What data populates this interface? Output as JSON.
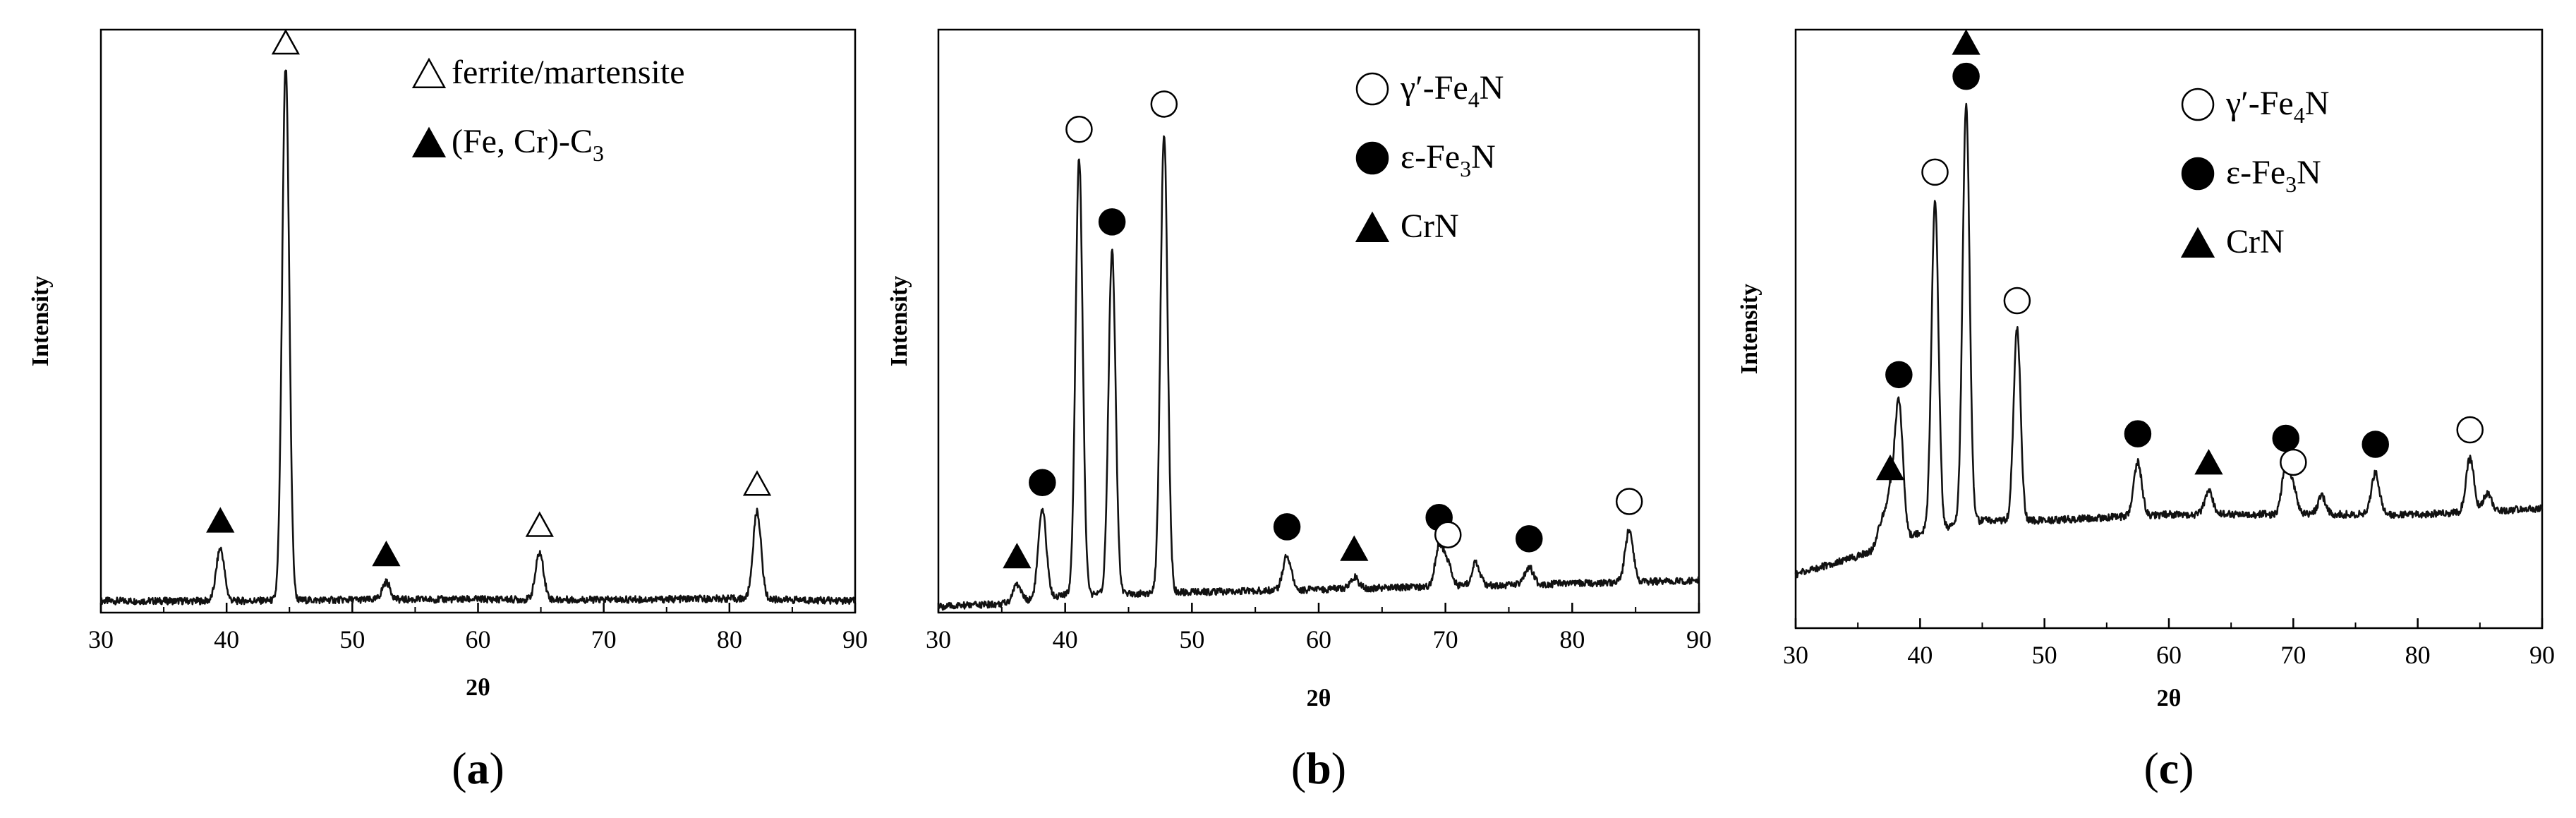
{
  "figure": {
    "markers": {
      "open-triangle": "open-triangle-icon",
      "filled-triangle": "filled-triangle-icon",
      "open-circle": "open-circle-icon",
      "filled-circle": "filled-circle-icon"
    }
  },
  "chart_data": [
    {
      "type": "line",
      "panel_label": {
        "open": "(",
        "letter": "a",
        "close": ")"
      },
      "xlabel": "2θ",
      "ylabel": "Intensity",
      "xlim": [
        30,
        90
      ],
      "x_ticks": [
        30,
        40,
        50,
        60,
        70,
        80,
        90
      ],
      "y_ticks": [],
      "grid": false,
      "legend_position": "top-right",
      "legend": [
        {
          "marker": "open-triangle",
          "label": "ferrite/martensite",
          "sub": "",
          "tail": ""
        },
        {
          "marker": "filled-triangle",
          "label": "(Fe, Cr)-C",
          "sub": "3",
          "tail": ""
        }
      ],
      "baseline": [
        [
          30,
          0.02
        ],
        [
          40,
          0.02
        ],
        [
          50,
          0.022
        ],
        [
          60,
          0.023
        ],
        [
          70,
          0.022
        ],
        [
          80,
          0.024
        ],
        [
          90,
          0.02
        ]
      ],
      "peaks": [
        {
          "x": 39.5,
          "height": 0.09,
          "marker": "filled-triangle"
        },
        {
          "x": 44.7,
          "height": 0.92,
          "marker": "open-triangle"
        },
        {
          "x": 52.7,
          "height": 0.03,
          "marker": "filled-triangle"
        },
        {
          "x": 64.9,
          "height": 0.08,
          "marker": "open-triangle"
        },
        {
          "x": 82.2,
          "height": 0.15,
          "marker": "open-triangle"
        }
      ]
    },
    {
      "type": "line",
      "panel_label": {
        "open": "(",
        "letter": "b",
        "close": ")"
      },
      "xlabel": "2θ",
      "ylabel": "Intensity",
      "xlim": [
        30,
        90
      ],
      "x_ticks": [
        30,
        40,
        50,
        60,
        70,
        80,
        90
      ],
      "y_ticks": [],
      "grid": false,
      "legend_position": "top-right",
      "legend": [
        {
          "marker": "open-circle",
          "label": "γ′-Fe",
          "sub": "4",
          "tail": "N"
        },
        {
          "marker": "filled-circle",
          "label": "ε-Fe",
          "sub": "3",
          "tail": "N"
        },
        {
          "marker": "filled-triangle",
          "label": "CrN",
          "sub": "",
          "tail": ""
        }
      ],
      "baseline": [
        [
          30,
          0.01
        ],
        [
          35,
          0.015
        ],
        [
          40,
          0.03
        ],
        [
          50,
          0.035
        ],
        [
          60,
          0.04
        ],
        [
          70,
          0.045
        ],
        [
          80,
          0.05
        ],
        [
          90,
          0.055
        ]
      ],
      "peaks": [
        {
          "x": 36.2,
          "height": 0.03,
          "marker": "filled-triangle"
        },
        {
          "x": 38.2,
          "height": 0.15,
          "marker": "filled-circle"
        },
        {
          "x": 41.1,
          "height": 0.75,
          "marker": "open-circle"
        },
        {
          "x": 43.7,
          "height": 0.59,
          "marker": "filled-circle"
        },
        {
          "x": 47.8,
          "height": 0.79,
          "marker": "open-circle"
        },
        {
          "x": 57.5,
          "height": 0.06,
          "marker": "filled-circle"
        },
        {
          "x": 62.8,
          "height": 0.02,
          "marker": "filled-triangle"
        },
        {
          "x": 69.5,
          "height": 0.07,
          "marker": "filled-circle"
        },
        {
          "x": 70.2,
          "height": 0.04,
          "marker": "open-circle"
        },
        {
          "x": 72.4,
          "height": 0.04,
          "marker": ""
        },
        {
          "x": 76.6,
          "height": 0.03,
          "marker": "filled-circle"
        },
        {
          "x": 84.5,
          "height": 0.09,
          "marker": "open-circle"
        }
      ]
    },
    {
      "type": "line",
      "panel_label": {
        "open": "(",
        "letter": "c",
        "close": ")"
      },
      "xlabel": "2θ",
      "ylabel": "Intensity",
      "xlim": [
        30,
        90
      ],
      "x_ticks": [
        30,
        40,
        50,
        60,
        70,
        80,
        90
      ],
      "y_ticks": [],
      "grid": false,
      "legend_position": "top-right",
      "legend": [
        {
          "marker": "open-circle",
          "label": "γ′-Fe",
          "sub": "4",
          "tail": "N"
        },
        {
          "marker": "filled-circle",
          "label": "ε-Fe",
          "sub": "3",
          "tail": "N"
        },
        {
          "marker": "filled-triangle",
          "label": "CrN",
          "sub": "",
          "tail": ""
        }
      ],
      "baseline": [
        [
          30,
          0.09
        ],
        [
          35,
          0.12
        ],
        [
          40,
          0.16
        ],
        [
          45,
          0.18
        ],
        [
          50,
          0.18
        ],
        [
          60,
          0.19
        ],
        [
          70,
          0.19
        ],
        [
          80,
          0.19
        ],
        [
          90,
          0.2
        ]
      ],
      "peaks": [
        {
          "x": 36.9,
          "height": 0.04,
          "marker": ""
        },
        {
          "x": 37.6,
          "height": 0.08,
          "marker": "filled-triangle"
        },
        {
          "x": 38.3,
          "height": 0.23,
          "marker": "filled-circle"
        },
        {
          "x": 41.2,
          "height": 0.55,
          "marker": "open-circle"
        },
        {
          "x": 43.7,
          "height": 0.7,
          "marker": "filled-circle",
          "extra_marker": "filled-triangle"
        },
        {
          "x": 47.8,
          "height": 0.32,
          "marker": "open-circle"
        },
        {
          "x": 57.5,
          "height": 0.09,
          "marker": "filled-circle"
        },
        {
          "x": 63.2,
          "height": 0.04,
          "marker": "filled-triangle"
        },
        {
          "x": 69.4,
          "height": 0.08,
          "marker": "filled-circle"
        },
        {
          "x": 70.0,
          "height": 0.04,
          "marker": "open-circle"
        },
        {
          "x": 72.3,
          "height": 0.03,
          "marker": ""
        },
        {
          "x": 76.6,
          "height": 0.07,
          "marker": "filled-circle"
        },
        {
          "x": 84.2,
          "height": 0.09,
          "marker": "open-circle"
        },
        {
          "x": 85.6,
          "height": 0.03,
          "marker": ""
        }
      ]
    }
  ]
}
